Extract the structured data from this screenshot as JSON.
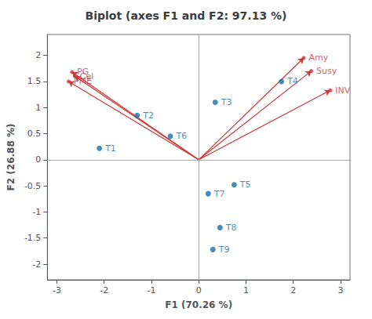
{
  "chart_data": {
    "type": "biplot",
    "title": "Biplot (axes F1 and F2: 97.13 %)",
    "xlabel": "F1 (70.26 %)",
    "ylabel": "F2 (26.88 %)",
    "xlim": [
      -3.2,
      3.2
    ],
    "ylim": [
      -2.3,
      2.4
    ],
    "xticks": [
      -3,
      -2,
      -1,
      0,
      1,
      2,
      3
    ],
    "yticks": [
      -2,
      -1.5,
      -1,
      -0.5,
      0,
      0.5,
      1,
      1.5,
      2
    ],
    "grid": false,
    "series": [
      {
        "type": "scatter",
        "color": "#1a6fa8",
        "labels": [
          "T1",
          "T2",
          "T3",
          "T4",
          "T5",
          "T6",
          "T7",
          "T8",
          "T9"
        ],
        "x": [
          -2.1,
          -1.3,
          0.35,
          1.75,
          0.75,
          -0.6,
          0.2,
          0.45,
          0.3
        ],
        "values": [
          0.22,
          0.85,
          1.1,
          1.5,
          -0.48,
          0.45,
          -0.65,
          -1.3,
          -1.72
        ]
      },
      {
        "type": "arrow",
        "color": "#cc3333",
        "labels": [
          "PG",
          "Cel",
          "PME",
          "Amy",
          "Susy",
          "INV"
        ],
        "x": [
          -2.68,
          -2.62,
          -2.75,
          2.22,
          2.38,
          2.78
        ],
        "values": [
          1.68,
          1.6,
          1.5,
          1.95,
          1.7,
          1.33
        ]
      }
    ]
  }
}
